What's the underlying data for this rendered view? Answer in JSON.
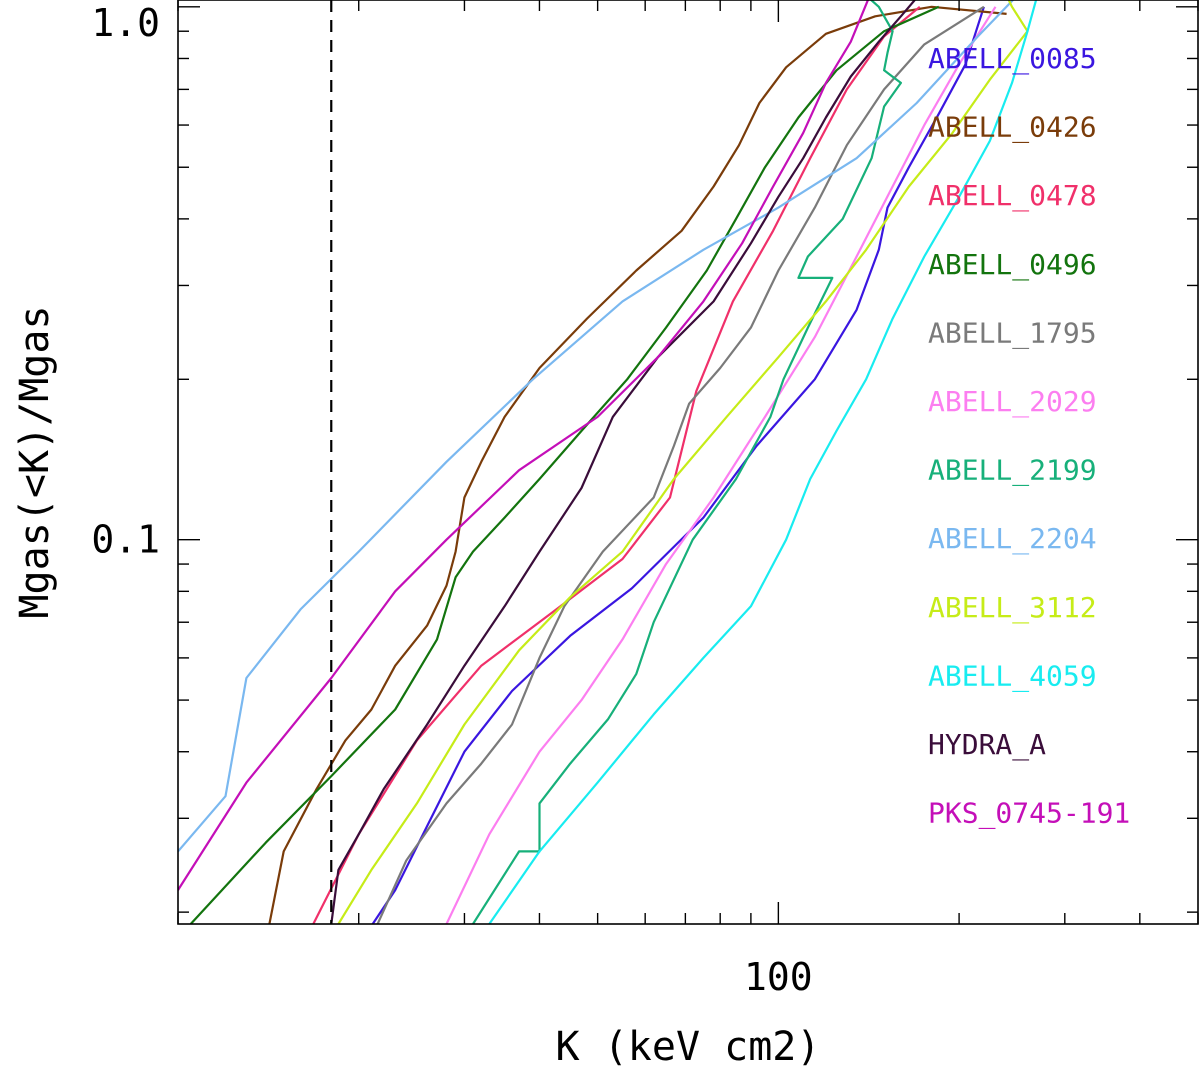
{
  "chart_data": {
    "type": "line",
    "title": "",
    "xlabel": "K (keV cm2)",
    "ylabel": "Mgas(<K)/Mgas",
    "xscale": "log",
    "yscale": "log",
    "xlim": [
      10,
      500
    ],
    "ylim": [
      0.019,
      1.03
    ],
    "xticks": [
      100
    ],
    "xticklabels": [
      "100"
    ],
    "yticks": [
      0.1,
      1.0
    ],
    "yticklabels": [
      "0.1",
      "1.0"
    ],
    "grid": false,
    "legend_position": "right",
    "reference_line": {
      "x": 18,
      "style": "dashed",
      "color": "#000000"
    },
    "series": [
      {
        "name": "ABELL_0085",
        "color": "#3a16e0",
        "points": [
          [
            21.1,
            0.019
          ],
          [
            23,
            0.022
          ],
          [
            26,
            0.029
          ],
          [
            30,
            0.04
          ],
          [
            36,
            0.052
          ],
          [
            45,
            0.066
          ],
          [
            57,
            0.081
          ],
          [
            75,
            0.11
          ],
          [
            92,
            0.15
          ],
          [
            115,
            0.2
          ],
          [
            135,
            0.27
          ],
          [
            147,
            0.35
          ],
          [
            152,
            0.42
          ],
          [
            165,
            0.5
          ],
          [
            185,
            0.63
          ],
          [
            205,
            0.78
          ],
          [
            220,
            1.0
          ]
        ]
      },
      {
        "name": "ABELL_0426",
        "color": "#7a3c0a",
        "points": [
          [
            14.2,
            0.019
          ],
          [
            15,
            0.026
          ],
          [
            17,
            0.034
          ],
          [
            19,
            0.042
          ],
          [
            21,
            0.048
          ],
          [
            23,
            0.058
          ],
          [
            26,
            0.069
          ],
          [
            28,
            0.082
          ],
          [
            29,
            0.095
          ],
          [
            30,
            0.12
          ],
          [
            32,
            0.14
          ],
          [
            35,
            0.17
          ],
          [
            40,
            0.21
          ],
          [
            48,
            0.26
          ],
          [
            58,
            0.32
          ],
          [
            69,
            0.38
          ],
          [
            78,
            0.46
          ],
          [
            86,
            0.55
          ],
          [
            93,
            0.66
          ],
          [
            103,
            0.77
          ],
          [
            120,
            0.89
          ],
          [
            145,
            0.96
          ],
          [
            180,
            1.0
          ],
          [
            240,
            0.97
          ]
        ]
      },
      {
        "name": "ABELL_0478",
        "color": "#f0306a",
        "points": [
          [
            16.8,
            0.019
          ],
          [
            20,
            0.028
          ],
          [
            25,
            0.042
          ],
          [
            32,
            0.058
          ],
          [
            42,
            0.073
          ],
          [
            55,
            0.092
          ],
          [
            66,
            0.12
          ],
          [
            73,
            0.19
          ],
          [
            84,
            0.28
          ],
          [
            98,
            0.38
          ],
          [
            113,
            0.52
          ],
          [
            130,
            0.7
          ],
          [
            150,
            0.88
          ],
          [
            172,
            1.0
          ]
        ]
      },
      {
        "name": "ABELL_0496",
        "color": "#13740e",
        "points": [
          [
            10.5,
            0.019
          ],
          [
            14,
            0.027
          ],
          [
            18,
            0.036
          ],
          [
            23,
            0.048
          ],
          [
            27,
            0.065
          ],
          [
            29,
            0.085
          ],
          [
            31,
            0.095
          ],
          [
            35,
            0.11
          ],
          [
            40,
            0.13
          ],
          [
            47,
            0.16
          ],
          [
            56,
            0.2
          ],
          [
            65,
            0.25
          ],
          [
            76,
            0.32
          ],
          [
            85,
            0.4
          ],
          [
            95,
            0.5
          ],
          [
            108,
            0.62
          ],
          [
            125,
            0.76
          ],
          [
            150,
            0.9
          ],
          [
            185,
            1.0
          ]
        ]
      },
      {
        "name": "ABELL_1795",
        "color": "#7a7a7a",
        "points": [
          [
            21.5,
            0.019
          ],
          [
            24,
            0.025
          ],
          [
            28,
            0.032
          ],
          [
            32,
            0.038
          ],
          [
            36,
            0.045
          ],
          [
            40,
            0.06
          ],
          [
            44,
            0.075
          ],
          [
            51,
            0.095
          ],
          [
            62,
            0.12
          ],
          [
            67,
            0.15
          ],
          [
            71,
            0.18
          ],
          [
            80,
            0.21
          ],
          [
            90,
            0.25
          ],
          [
            100,
            0.32
          ],
          [
            115,
            0.42
          ],
          [
            130,
            0.55
          ],
          [
            150,
            0.7
          ],
          [
            175,
            0.85
          ],
          [
            220,
            1.0
          ]
        ]
      },
      {
        "name": "ABELL_2029",
        "color": "#fc7ef0",
        "points": [
          [
            28,
            0.019
          ],
          [
            33,
            0.028
          ],
          [
            40,
            0.04
          ],
          [
            47,
            0.05
          ],
          [
            55,
            0.065
          ],
          [
            65,
            0.09
          ],
          [
            78,
            0.12
          ],
          [
            95,
            0.17
          ],
          [
            115,
            0.24
          ],
          [
            135,
            0.34
          ],
          [
            155,
            0.46
          ],
          [
            175,
            0.6
          ],
          [
            200,
            0.78
          ],
          [
            230,
            1.0
          ]
        ]
      },
      {
        "name": "ABELL_2199",
        "color": "#17b07a",
        "points": [
          [
            31,
            0.019
          ],
          [
            37,
            0.026
          ],
          [
            40,
            0.026
          ],
          [
            40,
            0.032
          ],
          [
            45,
            0.038
          ],
          [
            52,
            0.046
          ],
          [
            58,
            0.056
          ],
          [
            62,
            0.07
          ],
          [
            72,
            0.1
          ],
          [
            85,
            0.13
          ],
          [
            97,
            0.17
          ],
          [
            102,
            0.2
          ],
          [
            112,
            0.25
          ],
          [
            123,
            0.31
          ],
          [
            108,
            0.31
          ],
          [
            112,
            0.34
          ],
          [
            128,
            0.4
          ],
          [
            143,
            0.52
          ],
          [
            150,
            0.65
          ],
          [
            160,
            0.72
          ],
          [
            150,
            0.76
          ],
          [
            152,
            0.82
          ],
          [
            155,
            0.9
          ],
          [
            147,
            1.0
          ],
          [
            140,
            1.05
          ],
          [
            100,
            1.05
          ]
        ]
      },
      {
        "name": "ABELL_2204",
        "color": "#7ab8f0",
        "points": [
          [
            10,
            0.026
          ],
          [
            12,
            0.033
          ],
          [
            13,
            0.055
          ],
          [
            16,
            0.074
          ],
          [
            20,
            0.095
          ],
          [
            28,
            0.14
          ],
          [
            39,
            0.2
          ],
          [
            55,
            0.28
          ],
          [
            75,
            0.35
          ],
          [
            100,
            0.42
          ],
          [
            135,
            0.52
          ],
          [
            170,
            0.66
          ],
          [
            215,
            0.88
          ],
          [
            250,
            1.05
          ]
        ]
      },
      {
        "name": "ABELL_3112",
        "color": "#c6ec18",
        "points": [
          [
            18.5,
            0.019
          ],
          [
            21,
            0.024
          ],
          [
            25,
            0.032
          ],
          [
            30,
            0.045
          ],
          [
            37,
            0.062
          ],
          [
            45,
            0.078
          ],
          [
            55,
            0.095
          ],
          [
            67,
            0.13
          ],
          [
            82,
            0.17
          ],
          [
            100,
            0.22
          ],
          [
            120,
            0.28
          ],
          [
            140,
            0.35
          ],
          [
            165,
            0.46
          ],
          [
            195,
            0.58
          ],
          [
            225,
            0.73
          ],
          [
            260,
            0.9
          ],
          [
            245,
            1.0
          ],
          [
            240,
            1.05
          ]
        ]
      },
      {
        "name": "ABELL_4059",
        "color": "#18ecf0",
        "points": [
          [
            33,
            0.019
          ],
          [
            40,
            0.026
          ],
          [
            50,
            0.035
          ],
          [
            62,
            0.047
          ],
          [
            75,
            0.06
          ],
          [
            90,
            0.075
          ],
          [
            103,
            0.1
          ],
          [
            113,
            0.13
          ],
          [
            125,
            0.16
          ],
          [
            140,
            0.2
          ],
          [
            155,
            0.26
          ],
          [
            175,
            0.34
          ],
          [
            200,
            0.44
          ],
          [
            225,
            0.56
          ],
          [
            245,
            0.72
          ],
          [
            260,
            0.9
          ],
          [
            270,
            1.05
          ]
        ]
      },
      {
        "name": "HYDRA_A",
        "color": "#3a0d3a",
        "points": [
          [
            18,
            0.019
          ],
          [
            18.5,
            0.024
          ],
          [
            20,
            0.028
          ],
          [
            22,
            0.034
          ],
          [
            26,
            0.045
          ],
          [
            30,
            0.058
          ],
          [
            35,
            0.075
          ],
          [
            40,
            0.095
          ],
          [
            47,
            0.125
          ],
          [
            53,
            0.17
          ],
          [
            63,
            0.22
          ],
          [
            78,
            0.28
          ],
          [
            90,
            0.36
          ],
          [
            100,
            0.44
          ],
          [
            110,
            0.52
          ],
          [
            120,
            0.62
          ],
          [
            132,
            0.74
          ],
          [
            147,
            0.86
          ],
          [
            160,
            0.96
          ],
          [
            170,
            1.04
          ]
        ]
      },
      {
        "name": "PKS_0745-191",
        "color": "#c40fb8",
        "points": [
          [
            10,
            0.022
          ],
          [
            13,
            0.035
          ],
          [
            18,
            0.055
          ],
          [
            23,
            0.08
          ],
          [
            28,
            0.1
          ],
          [
            37,
            0.135
          ],
          [
            50,
            0.17
          ],
          [
            63,
            0.22
          ],
          [
            75,
            0.28
          ],
          [
            87,
            0.36
          ],
          [
            98,
            0.46
          ],
          [
            110,
            0.58
          ],
          [
            120,
            0.72
          ],
          [
            132,
            0.86
          ],
          [
            142,
            1.05
          ]
        ]
      }
    ]
  }
}
